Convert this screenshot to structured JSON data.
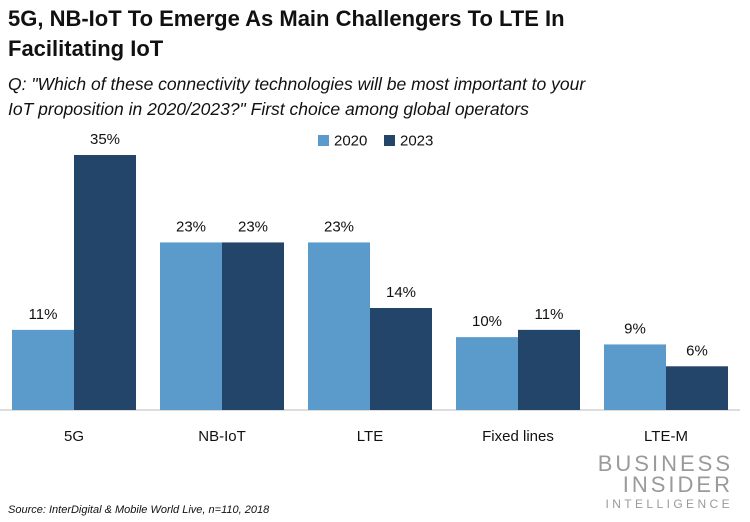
{
  "chart_data": {
    "type": "bar",
    "title": "5G, NB-IoT To Emerge As Main Challengers To LTE In Facilitating IoT",
    "subtitle": "Q: \"Which of these connectivity technologies will be most important to your IoT proposition in 2020/2023?\" First choice among global operators",
    "categories": [
      "5G",
      "NB-IoT",
      "LTE",
      "Fixed lines",
      "LTE-M"
    ],
    "series": [
      {
        "name": "2020",
        "color": "#5b9bcb",
        "values": [
          11,
          23,
          23,
          10,
          9
        ],
        "value_labels": [
          "11%",
          "23%",
          "23%",
          "10%",
          "9%"
        ]
      },
      {
        "name": "2023",
        "color": "#23456a",
        "values": [
          35,
          23,
          14,
          11,
          6
        ],
        "value_labels": [
          "35%",
          "23%",
          "14%",
          "11%",
          "6%"
        ]
      }
    ],
    "legend": "top",
    "source": "Source: InterDigital & Mobile World Live, n=110, 2018",
    "logo": [
      "BUSINESS",
      "INSIDER",
      "INTELLIGENCE"
    ]
  }
}
